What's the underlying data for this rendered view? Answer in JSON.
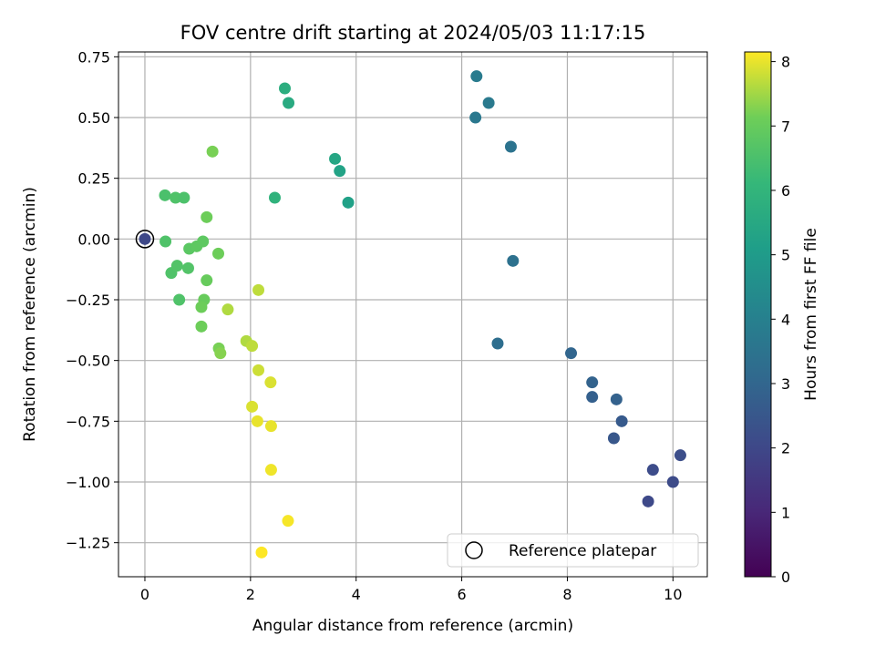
{
  "chart_data": {
    "type": "scatter",
    "title": "FOV centre drift starting at 2024/05/03 11:17:15",
    "xlabel": "Angular distance from reference (arcmin)",
    "ylabel": "Rotation from reference (arcmin)",
    "colorbar_label": "Hours from first FF file",
    "colormap": "viridis",
    "xlim": [
      -0.5,
      10.65
    ],
    "ylim": [
      -1.39,
      0.77
    ],
    "clim": [
      0,
      8.15
    ],
    "xticks": [
      "0",
      "2",
      "4",
      "6",
      "8",
      "10"
    ],
    "xtick_values": [
      0,
      2,
      4,
      6,
      8,
      10
    ],
    "yticks": [
      "0.75",
      "0.50",
      "0.25",
      "0.00",
      "−0.25",
      "−0.50",
      "−0.75",
      "−1.00",
      "−1.25"
    ],
    "ytick_values": [
      0.75,
      0.5,
      0.25,
      0.0,
      -0.25,
      -0.5,
      -0.75,
      -1.0,
      -1.25
    ],
    "cticks": [
      "0",
      "1",
      "2",
      "3",
      "4",
      "5",
      "6",
      "7",
      "8"
    ],
    "ctick_values": [
      0,
      1,
      2,
      3,
      4,
      5,
      6,
      7,
      8
    ],
    "grid": true,
    "legend": {
      "position": "lower-right",
      "label": "Reference platepar"
    },
    "reference_point": {
      "x": 0.0,
      "y": 0.0
    },
    "points": [
      {
        "x": 0.0,
        "y": 0.0,
        "c": 2.0
      },
      {
        "x": 9.53,
        "y": -1.08,
        "c": 2.05
      },
      {
        "x": 10.0,
        "y": -1.0,
        "c": 2.1
      },
      {
        "x": 9.62,
        "y": -0.95,
        "c": 2.15
      },
      {
        "x": 10.14,
        "y": -0.89,
        "c": 2.2
      },
      {
        "x": 8.88,
        "y": -0.82,
        "c": 2.5
      },
      {
        "x": 9.03,
        "y": -0.75,
        "c": 2.6
      },
      {
        "x": 8.47,
        "y": -0.65,
        "c": 2.8
      },
      {
        "x": 8.93,
        "y": -0.66,
        "c": 2.85
      },
      {
        "x": 8.47,
        "y": -0.59,
        "c": 2.9
      },
      {
        "x": 8.07,
        "y": -0.47,
        "c": 3.0
      },
      {
        "x": 6.68,
        "y": -0.43,
        "c": 3.3
      },
      {
        "x": 6.97,
        "y": -0.09,
        "c": 3.4
      },
      {
        "x": 6.93,
        "y": 0.38,
        "c": 3.5
      },
      {
        "x": 6.26,
        "y": 0.5,
        "c": 3.7
      },
      {
        "x": 6.51,
        "y": 0.56,
        "c": 3.75
      },
      {
        "x": 6.28,
        "y": 0.67,
        "c": 3.8
      },
      {
        "x": 3.85,
        "y": 0.15,
        "c": 5.2
      },
      {
        "x": 3.69,
        "y": 0.28,
        "c": 5.3
      },
      {
        "x": 3.6,
        "y": 0.33,
        "c": 5.4
      },
      {
        "x": 2.72,
        "y": 0.56,
        "c": 5.6
      },
      {
        "x": 2.65,
        "y": 0.62,
        "c": 5.7
      },
      {
        "x": 2.46,
        "y": 0.17,
        "c": 5.9
      },
      {
        "x": 0.38,
        "y": 0.18,
        "c": 6.5
      },
      {
        "x": 0.58,
        "y": 0.17,
        "c": 6.6
      },
      {
        "x": 0.74,
        "y": 0.17,
        "c": 6.55
      },
      {
        "x": 0.39,
        "y": -0.01,
        "c": 6.6
      },
      {
        "x": 0.5,
        "y": -0.14,
        "c": 6.6
      },
      {
        "x": 0.61,
        "y": -0.11,
        "c": 6.65
      },
      {
        "x": 0.82,
        "y": -0.12,
        "c": 6.65
      },
      {
        "x": 0.65,
        "y": -0.25,
        "c": 6.6
      },
      {
        "x": 0.84,
        "y": -0.04,
        "c": 6.8
      },
      {
        "x": 0.98,
        "y": -0.03,
        "c": 6.85
      },
      {
        "x": 1.1,
        "y": -0.01,
        "c": 6.85
      },
      {
        "x": 1.17,
        "y": 0.09,
        "c": 7.1
      },
      {
        "x": 1.28,
        "y": 0.36,
        "c": 7.2
      },
      {
        "x": 1.39,
        "y": -0.06,
        "c": 7.1
      },
      {
        "x": 1.17,
        "y": -0.17,
        "c": 7.0
      },
      {
        "x": 1.12,
        "y": -0.25,
        "c": 7.0
      },
      {
        "x": 1.07,
        "y": -0.28,
        "c": 7.1
      },
      {
        "x": 1.07,
        "y": -0.36,
        "c": 7.1
      },
      {
        "x": 1.4,
        "y": -0.45,
        "c": 7.2
      },
      {
        "x": 1.43,
        "y": -0.47,
        "c": 7.3
      },
      {
        "x": 1.57,
        "y": -0.29,
        "c": 7.6
      },
      {
        "x": 2.15,
        "y": -0.21,
        "c": 7.7
      },
      {
        "x": 1.92,
        "y": -0.42,
        "c": 7.6
      },
      {
        "x": 2.03,
        "y": -0.44,
        "c": 7.7
      },
      {
        "x": 2.15,
        "y": -0.54,
        "c": 7.8
      },
      {
        "x": 2.38,
        "y": -0.59,
        "c": 7.9
      },
      {
        "x": 2.03,
        "y": -0.69,
        "c": 7.9
      },
      {
        "x": 2.13,
        "y": -0.75,
        "c": 8.0
      },
      {
        "x": 2.39,
        "y": -0.77,
        "c": 8.0
      },
      {
        "x": 2.39,
        "y": -0.95,
        "c": 8.05
      },
      {
        "x": 2.71,
        "y": -1.16,
        "c": 8.1
      },
      {
        "x": 2.21,
        "y": -1.29,
        "c": 8.15
      }
    ]
  }
}
